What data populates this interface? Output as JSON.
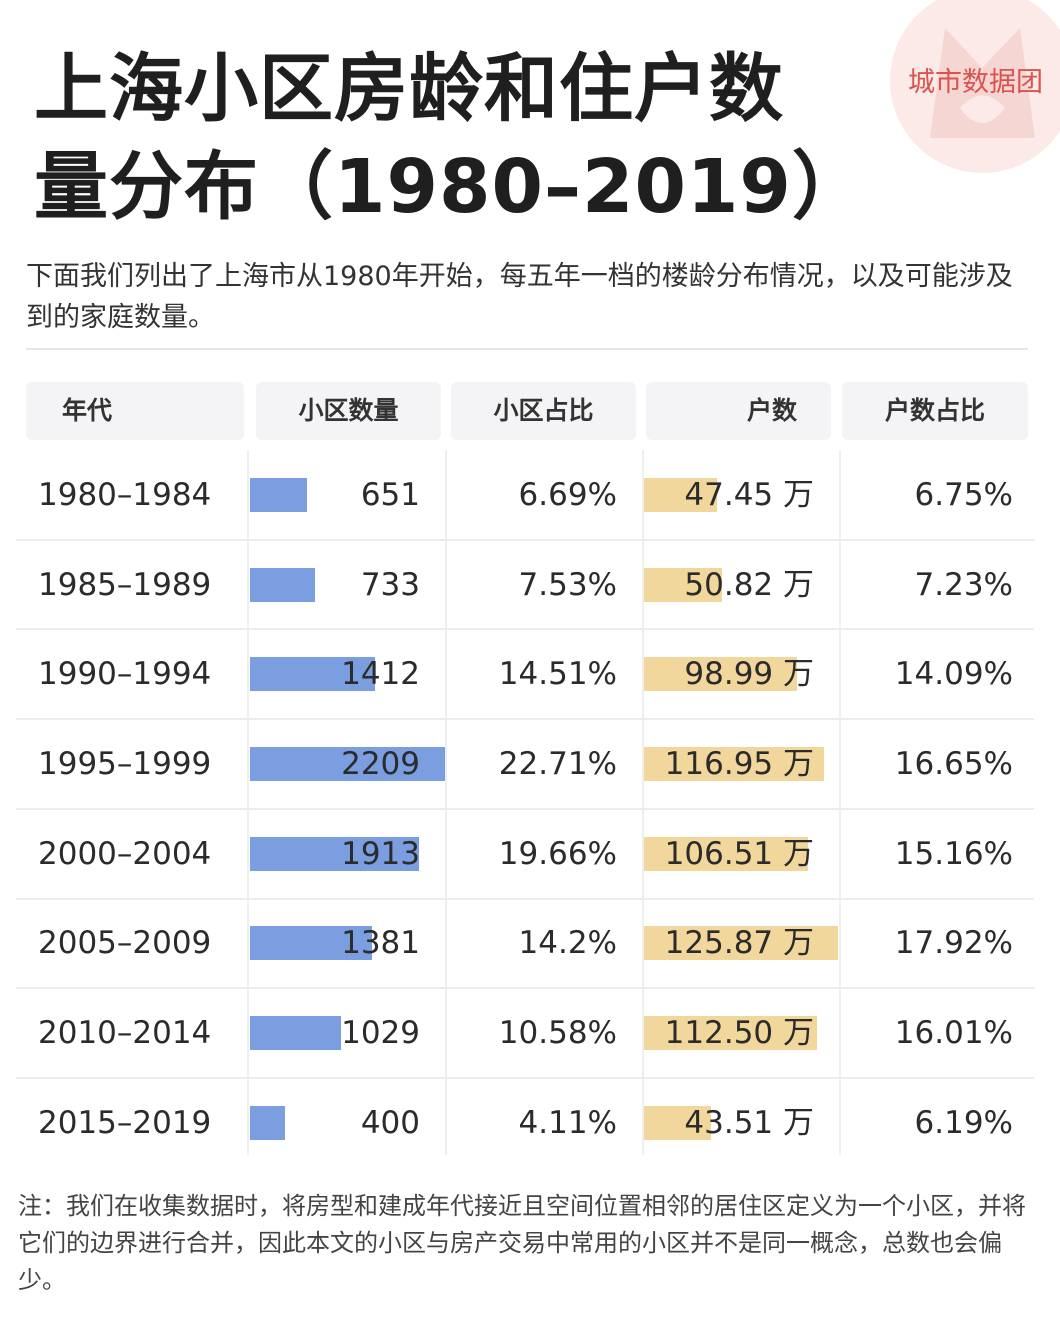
{
  "brand": {
    "logo_text": "城市数据团"
  },
  "title": "上海小区房龄和住户数量分布（1980–2019）",
  "subtitle": "下面我们列出了上海市从1980年开始，每五年一档的楼龄分布情况，以及可能涉及到的家庭数量。",
  "note": "注：我们在收集数据时，将房型和建成年代接近且空间位置相邻的居住区定义为一个小区，并将它们的边界进行合并，因此本文的小区与房产交易中常用的小区并不是同一概念，总数也会偏少。",
  "colors": {
    "community_bar": "#7a9ee0",
    "household_bar": "#f1d79c",
    "brand": "#d9534f"
  },
  "chart_data": {
    "type": "table",
    "columns": [
      "年代",
      "小区数量",
      "小区占比",
      "户数",
      "户数占比"
    ],
    "rows": [
      {
        "period": "1980–1984",
        "communities": 651,
        "community_share": "6.69%",
        "households": 47.45,
        "households_label": "47.45 万",
        "household_share": "6.75%"
      },
      {
        "period": "1985–1989",
        "communities": 733,
        "community_share": "7.53%",
        "households": 50.82,
        "households_label": "50.82 万",
        "household_share": "7.23%"
      },
      {
        "period": "1990–1994",
        "communities": 1412,
        "community_share": "14.51%",
        "households": 98.99,
        "households_label": "98.99 万",
        "household_share": "14.09%"
      },
      {
        "period": "1995–1999",
        "communities": 2209,
        "community_share": "22.71%",
        "households": 116.95,
        "households_label": "116.95 万",
        "household_share": "16.65%"
      },
      {
        "period": "2000–2004",
        "communities": 1913,
        "community_share": "19.66%",
        "households": 106.51,
        "households_label": "106.51 万",
        "household_share": "15.16%"
      },
      {
        "period": "2005–2009",
        "communities": 1381,
        "community_share": "14.2%",
        "households": 125.87,
        "households_label": "125.87 万",
        "household_share": "17.92%"
      },
      {
        "period": "2010–2014",
        "communities": 1029,
        "community_share": "10.58%",
        "households": 112.5,
        "households_label": "112.50 万",
        "household_share": "16.01%"
      },
      {
        "period": "2015–2019",
        "communities": 400,
        "community_share": "4.11%",
        "households": 43.51,
        "households_label": "43.51 万",
        "household_share": "6.19%"
      }
    ],
    "community_scale_max": 2209,
    "household_scale_max": 125.87
  }
}
